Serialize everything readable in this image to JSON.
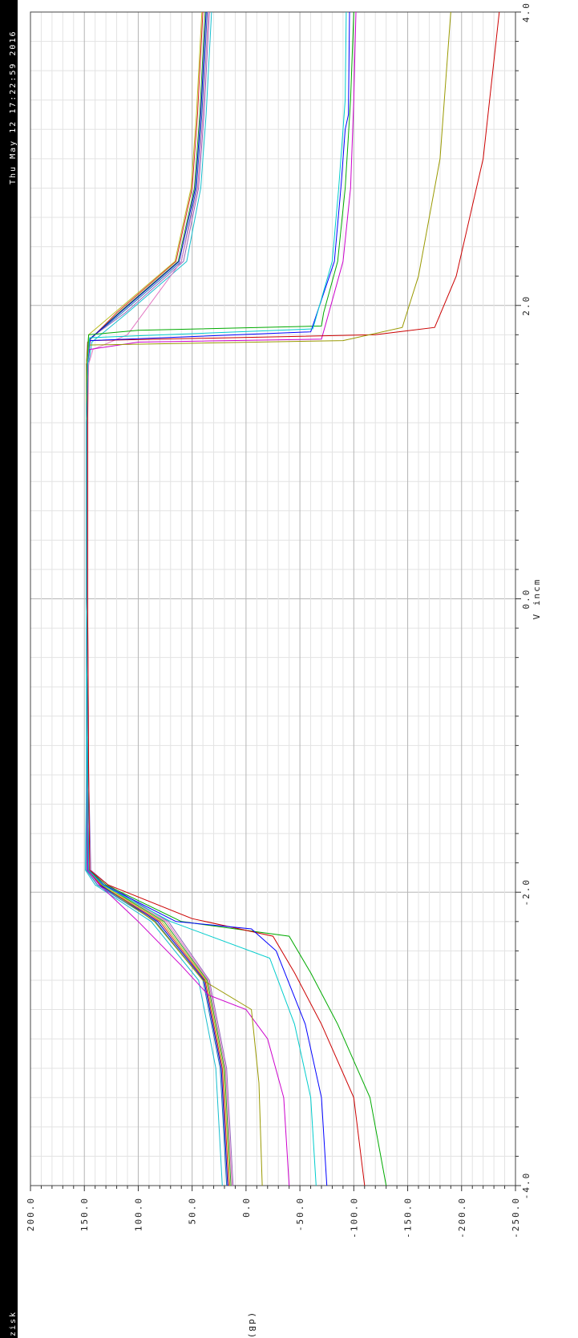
{
  "sidebar": {
    "timestamp": "Thu May 12 17:22:59 2016",
    "corner_label": "zisk"
  },
  "chart_data": {
    "type": "line",
    "title": "",
    "xlabel": "V incm",
    "ylabel": "(dB)",
    "xlim": [
      -4.0,
      4.0
    ],
    "ylim": [
      -250.0,
      200.0
    ],
    "x_ticks": [
      -4.0,
      -2.0,
      0.0,
      2.0,
      4.0
    ],
    "y_ticks": [
      200.0,
      150.0,
      100.0,
      50.0,
      0.0,
      -50.0,
      -100.0,
      -150.0,
      -200.0,
      -250.0
    ],
    "x_tick_labels": [
      "-4.0",
      "-2.0",
      "0.0",
      "2.0",
      "4.0"
    ],
    "y_tick_labels": [
      "200.0",
      "150.0",
      "100.0",
      "50.0",
      "0.0",
      "-50.0",
      "-100.0",
      "-150.0",
      "-200.0",
      "-250.0"
    ],
    "grid": true,
    "orientation": "rotated-90",
    "series": [
      {
        "color": "#d62728",
        "values": [
          [
            -4.0,
            16
          ],
          [
            -3.2,
            22
          ],
          [
            -2.6,
            38
          ],
          [
            -2.2,
            80
          ],
          [
            -1.95,
            135
          ],
          [
            -1.85,
            147
          ],
          [
            -1.2,
            147
          ],
          [
            0.0,
            148
          ],
          [
            1.2,
            148
          ],
          [
            1.6,
            148
          ],
          [
            1.75,
            147
          ],
          [
            1.95,
            120
          ],
          [
            2.3,
            65
          ],
          [
            2.8,
            50
          ],
          [
            3.3,
            45
          ],
          [
            4.0,
            40
          ]
        ]
      },
      {
        "color": "#2ca02c",
        "values": [
          [
            -4.0,
            14
          ],
          [
            -3.2,
            20
          ],
          [
            -2.6,
            36
          ],
          [
            -2.2,
            76
          ],
          [
            -1.95,
            132
          ],
          [
            -1.85,
            146
          ],
          [
            -1.2,
            147
          ],
          [
            0.0,
            148
          ],
          [
            1.2,
            148
          ],
          [
            1.6,
            148
          ],
          [
            1.76,
            146
          ],
          [
            1.95,
            118
          ],
          [
            2.3,
            63
          ],
          [
            2.8,
            48
          ],
          [
            3.3,
            43
          ],
          [
            4.0,
            38
          ]
        ]
      },
      {
        "color": "#1f77b4",
        "values": [
          [
            -4.0,
            18
          ],
          [
            -3.2,
            24
          ],
          [
            -2.6,
            40
          ],
          [
            -2.2,
            84
          ],
          [
            -1.95,
            138
          ],
          [
            -1.85,
            148
          ],
          [
            -1.2,
            148
          ],
          [
            0.0,
            148
          ],
          [
            1.2,
            148
          ],
          [
            1.6,
            147
          ],
          [
            1.77,
            145
          ],
          [
            1.95,
            115
          ],
          [
            2.3,
            60
          ],
          [
            2.8,
            46
          ],
          [
            3.3,
            41
          ],
          [
            4.0,
            36
          ]
        ]
      },
      {
        "color": "#9467bd",
        "values": [
          [
            -4.0,
            12
          ],
          [
            -3.2,
            18
          ],
          [
            -2.6,
            34
          ],
          [
            -2.2,
            72
          ],
          [
            -1.95,
            128
          ],
          [
            -1.85,
            144
          ],
          [
            -1.2,
            146
          ],
          [
            0.0,
            147
          ],
          [
            1.2,
            147
          ],
          [
            1.6,
            147
          ],
          [
            1.78,
            144
          ],
          [
            1.95,
            112
          ],
          [
            2.3,
            58
          ],
          [
            2.8,
            44
          ],
          [
            3.3,
            39
          ],
          [
            4.0,
            34
          ]
        ]
      },
      {
        "color": "#17becf",
        "values": [
          [
            -4.0,
            22
          ],
          [
            -3.2,
            28
          ],
          [
            -2.6,
            44
          ],
          [
            -2.2,
            88
          ],
          [
            -1.95,
            140
          ],
          [
            -1.85,
            149
          ],
          [
            -1.2,
            148
          ],
          [
            0.0,
            148
          ],
          [
            1.2,
            148
          ],
          [
            1.6,
            146
          ],
          [
            1.75,
            143
          ],
          [
            1.95,
            110
          ],
          [
            2.3,
            55
          ],
          [
            2.8,
            42
          ],
          [
            3.3,
            37
          ],
          [
            4.0,
            32
          ]
        ]
      },
      {
        "color": "#bcbd22",
        "values": [
          [
            -4.0,
            15
          ],
          [
            -3.2,
            21
          ],
          [
            -2.6,
            37
          ],
          [
            -2.2,
            78
          ],
          [
            -1.95,
            133
          ],
          [
            -1.85,
            146
          ],
          [
            -1.2,
            147
          ],
          [
            0.0,
            148
          ],
          [
            1.2,
            148
          ],
          [
            1.6,
            147
          ],
          [
            1.8,
            146
          ],
          [
            1.95,
            122
          ],
          [
            2.3,
            66
          ],
          [
            2.8,
            51
          ],
          [
            3.3,
            46
          ],
          [
            4.0,
            41
          ]
        ]
      },
      {
        "color": "#e377c2",
        "values": [
          [
            -4.0,
            13
          ],
          [
            -3.2,
            19
          ],
          [
            -2.6,
            35
          ],
          [
            -2.2,
            74
          ],
          [
            -1.95,
            130
          ],
          [
            -1.85,
            145
          ],
          [
            -1.2,
            146
          ],
          [
            0.0,
            147
          ],
          [
            1.2,
            147
          ],
          [
            1.6,
            146
          ],
          [
            1.7,
            142
          ],
          [
            1.8,
            110
          ],
          [
            2.3,
            60
          ],
          [
            2.8,
            45
          ],
          [
            3.3,
            40
          ],
          [
            4.0,
            35
          ]
        ]
      },
      {
        "color": "#0000cc",
        "values": [
          [
            -4.0,
            17
          ],
          [
            -3.2,
            23
          ],
          [
            -2.6,
            39
          ],
          [
            -2.2,
            82
          ],
          [
            -1.95,
            136
          ],
          [
            -1.85,
            147
          ],
          [
            -1.2,
            147
          ],
          [
            0.0,
            148
          ],
          [
            1.2,
            148
          ],
          [
            1.6,
            147
          ],
          [
            1.77,
            145
          ],
          [
            1.95,
            117
          ],
          [
            2.3,
            62
          ],
          [
            2.8,
            47
          ],
          [
            3.3,
            42
          ],
          [
            4.0,
            37
          ]
        ]
      },
      {
        "color": "#cc00cc",
        "values": [
          [
            -4.0,
            -40
          ],
          [
            -3.4,
            -35
          ],
          [
            -3.0,
            -20
          ],
          [
            -2.8,
            0
          ],
          [
            -2.7,
            35
          ],
          [
            -2.5,
            60
          ],
          [
            -2.2,
            100
          ],
          [
            -1.95,
            136
          ],
          [
            -1.85,
            147
          ],
          [
            -1.2,
            147
          ],
          [
            0.0,
            148
          ],
          [
            1.2,
            148
          ],
          [
            1.6,
            147
          ],
          [
            1.7,
            145
          ],
          [
            1.75,
            100
          ],
          [
            1.77,
            -70
          ],
          [
            1.9,
            -75
          ],
          [
            2.3,
            -90
          ],
          [
            2.8,
            -97
          ],
          [
            3.4,
            -100
          ],
          [
            4.0,
            -102
          ]
        ]
      },
      {
        "color": "#00aa00",
        "values": [
          [
            -4.0,
            -130
          ],
          [
            -3.4,
            -115
          ],
          [
            -2.9,
            -85
          ],
          [
            -2.55,
            -60
          ],
          [
            -2.3,
            -40
          ],
          [
            -2.2,
            60
          ],
          [
            -1.95,
            130
          ],
          [
            -1.85,
            146
          ],
          [
            -1.2,
            147
          ],
          [
            0.0,
            148
          ],
          [
            1.2,
            148
          ],
          [
            1.6,
            148
          ],
          [
            1.8,
            146
          ],
          [
            1.83,
            100
          ],
          [
            1.86,
            -70
          ],
          [
            1.95,
            -72
          ],
          [
            2.3,
            -85
          ],
          [
            2.8,
            -92
          ],
          [
            3.4,
            -97
          ],
          [
            4.0,
            -100
          ]
        ]
      },
      {
        "color": "#cc0000",
        "values": [
          [
            -4.0,
            -110
          ],
          [
            -3.4,
            -100
          ],
          [
            -2.9,
            -70
          ],
          [
            -2.55,
            -45
          ],
          [
            -2.3,
            -25
          ],
          [
            -2.18,
            50
          ],
          [
            -1.95,
            128
          ],
          [
            -1.85,
            145
          ],
          [
            -1.2,
            146
          ],
          [
            0.0,
            147
          ],
          [
            1.2,
            147
          ],
          [
            1.6,
            147
          ],
          [
            1.76,
            145
          ],
          [
            1.8,
            -120
          ],
          [
            1.85,
            -175
          ],
          [
            2.2,
            -195
          ],
          [
            3.0,
            -220
          ],
          [
            4.0,
            -235
          ]
        ]
      },
      {
        "color": "#999900",
        "values": [
          [
            -4.0,
            -15
          ],
          [
            -3.3,
            -12
          ],
          [
            -2.8,
            -5
          ],
          [
            -2.6,
            40
          ],
          [
            -2.2,
            85
          ],
          [
            -1.95,
            134
          ],
          [
            -1.85,
            146
          ],
          [
            -1.2,
            147
          ],
          [
            0.0,
            148
          ],
          [
            1.2,
            148
          ],
          [
            1.6,
            148
          ],
          [
            1.73,
            146
          ],
          [
            1.76,
            -90
          ],
          [
            1.85,
            -145
          ],
          [
            2.2,
            -160
          ],
          [
            3.0,
            -180
          ],
          [
            4.0,
            -190
          ]
        ]
      },
      {
        "color": "#0000ff",
        "values": [
          [
            -4.0,
            -75
          ],
          [
            -3.4,
            -70
          ],
          [
            -2.9,
            -55
          ],
          [
            -2.4,
            -28
          ],
          [
            -2.25,
            -5
          ],
          [
            -2.2,
            65
          ],
          [
            -1.95,
            132
          ],
          [
            -1.85,
            146
          ],
          [
            -1.2,
            147
          ],
          [
            0.0,
            148
          ],
          [
            1.2,
            148
          ],
          [
            1.6,
            147
          ],
          [
            1.76,
            145
          ],
          [
            1.82,
            -60
          ],
          [
            2.3,
            -82
          ],
          [
            2.8,
            -88
          ],
          [
            3.2,
            -92
          ],
          [
            3.3,
            -95
          ],
          [
            4.0,
            -96
          ]
        ]
      },
      {
        "color": "#00cccc",
        "values": [
          [
            -4.0,
            -65
          ],
          [
            -3.4,
            -60
          ],
          [
            -2.9,
            -45
          ],
          [
            -2.45,
            -22
          ],
          [
            -2.2,
            70
          ],
          [
            -1.95,
            133
          ],
          [
            -1.85,
            146
          ],
          [
            -1.2,
            147
          ],
          [
            0.0,
            148
          ],
          [
            1.2,
            148
          ],
          [
            1.6,
            147
          ],
          [
            1.78,
            145
          ],
          [
            1.84,
            -62
          ],
          [
            2.3,
            -80
          ],
          [
            2.8,
            -86
          ],
          [
            3.2,
            -90
          ],
          [
            3.4,
            -92
          ],
          [
            4.0,
            -93
          ]
        ]
      }
    ]
  }
}
